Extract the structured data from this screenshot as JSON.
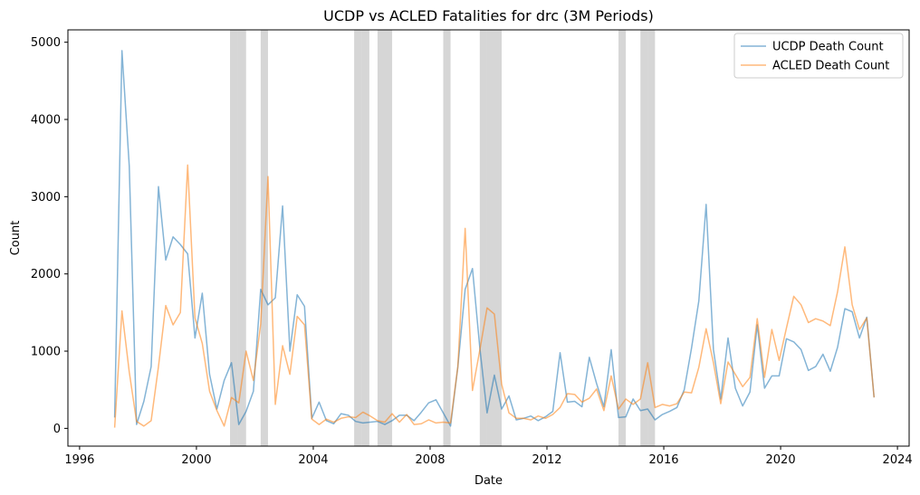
{
  "chart_data": {
    "type": "line",
    "title": "UCDP vs ACLED Fatalities for drc (3M Periods)",
    "xlabel": "Date",
    "ylabel": "Count",
    "xlim": [
      1995.6,
      2024.4
    ],
    "ylim": [
      -230,
      5160
    ],
    "xticks": [
      1996,
      2000,
      2004,
      2008,
      2012,
      2016,
      2020,
      2024
    ],
    "yticks": [
      0,
      1000,
      2000,
      3000,
      4000,
      5000
    ],
    "grid": false,
    "legend_position": "top-right",
    "shaded_periods": [
      [
        2001.15,
        2001.42
      ],
      [
        2001.42,
        2001.7
      ],
      [
        2002.2,
        2002.45
      ],
      [
        2005.4,
        2005.65
      ],
      [
        2005.65,
        2005.92
      ],
      [
        2006.2,
        2006.45
      ],
      [
        2006.45,
        2006.7
      ],
      [
        2008.45,
        2008.7
      ],
      [
        2009.7,
        2009.95
      ],
      [
        2009.95,
        2010.2
      ],
      [
        2010.2,
        2010.45
      ],
      [
        2014.45,
        2014.7
      ],
      [
        2015.2,
        2015.45
      ],
      [
        2015.45,
        2015.7
      ]
    ],
    "series": [
      {
        "name": "UCDP Death Count",
        "color": "#1f77b4",
        "x": [
          1997.2,
          1997.45,
          1997.7,
          1997.95,
          1998.2,
          1998.45,
          1998.7,
          1998.95,
          1999.2,
          1999.45,
          1999.7,
          1999.95,
          2000.2,
          2000.45,
          2000.7,
          2000.95,
          2001.2,
          2001.45,
          2001.7,
          2001.95,
          2002.2,
          2002.45,
          2002.7,
          2002.95,
          2003.2,
          2003.45,
          2003.7,
          2003.95,
          2004.2,
          2004.45,
          2004.7,
          2004.95,
          2005.2,
          2005.45,
          2005.7,
          2005.95,
          2006.2,
          2006.45,
          2006.7,
          2006.95,
          2007.2,
          2007.45,
          2007.7,
          2007.95,
          2008.2,
          2008.45,
          2008.7,
          2008.95,
          2009.2,
          2009.45,
          2009.7,
          2009.95,
          2010.2,
          2010.45,
          2010.7,
          2010.95,
          2011.2,
          2011.45,
          2011.7,
          2011.95,
          2012.2,
          2012.45,
          2012.7,
          2012.95,
          2013.2,
          2013.45,
          2013.7,
          2013.95,
          2014.2,
          2014.45,
          2014.7,
          2014.95,
          2015.2,
          2015.45,
          2015.7,
          2015.95,
          2016.2,
          2016.45,
          2016.7,
          2016.95,
          2017.2,
          2017.45,
          2017.7,
          2017.95,
          2018.2,
          2018.45,
          2018.7,
          2018.95,
          2019.2,
          2019.45,
          2019.7,
          2019.95,
          2020.2,
          2020.45,
          2020.7,
          2020.95,
          2021.2,
          2021.45,
          2021.7,
          2021.95,
          2022.2,
          2022.45,
          2022.7,
          2022.95,
          2023.2
        ],
        "y": [
          140,
          4890,
          3400,
          50,
          350,
          800,
          3130,
          2180,
          2480,
          2380,
          2260,
          1170,
          1750,
          700,
          250,
          620,
          850,
          50,
          220,
          480,
          1800,
          1600,
          1690,
          2880,
          1000,
          1730,
          1580,
          130,
          340,
          100,
          60,
          190,
          170,
          90,
          70,
          80,
          90,
          50,
          100,
          170,
          170,
          100,
          210,
          330,
          370,
          200,
          30,
          800,
          1800,
          2070,
          1050,
          200,
          690,
          250,
          420,
          110,
          130,
          160,
          100,
          150,
          220,
          980,
          340,
          350,
          280,
          920,
          580,
          280,
          1020,
          140,
          150,
          380,
          230,
          250,
          110,
          180,
          220,
          270,
          500,
          1040,
          1650,
          2900,
          1020,
          380,
          1170,
          520,
          290,
          470,
          1340,
          520,
          680,
          680,
          1160,
          1120,
          1020,
          750,
          800,
          960,
          740,
          1050,
          1550,
          1510,
          1170,
          1440,
          400
        ]
      },
      {
        "name": "ACLED Death Count",
        "color": "#ff7f0e",
        "x": [
          1997.2,
          1997.45,
          1997.7,
          1997.95,
          1998.2,
          1998.45,
          1998.7,
          1998.95,
          1999.2,
          1999.45,
          1999.7,
          1999.95,
          2000.2,
          2000.45,
          2000.7,
          2000.95,
          2001.2,
          2001.45,
          2001.7,
          2001.95,
          2002.2,
          2002.45,
          2002.7,
          2002.95,
          2003.2,
          2003.45,
          2003.7,
          2003.95,
          2004.2,
          2004.45,
          2004.7,
          2004.95,
          2005.2,
          2005.45,
          2005.7,
          2005.95,
          2006.2,
          2006.45,
          2006.7,
          2006.95,
          2007.2,
          2007.45,
          2007.7,
          2007.95,
          2008.2,
          2008.45,
          2008.7,
          2008.95,
          2009.2,
          2009.45,
          2009.7,
          2009.95,
          2010.2,
          2010.45,
          2010.7,
          2010.95,
          2011.2,
          2011.45,
          2011.7,
          2011.95,
          2012.2,
          2012.45,
          2012.7,
          2012.95,
          2013.2,
          2013.45,
          2013.7,
          2013.95,
          2014.2,
          2014.45,
          2014.7,
          2014.95,
          2015.2,
          2015.45,
          2015.7,
          2015.95,
          2016.2,
          2016.45,
          2016.7,
          2016.95,
          2017.2,
          2017.45,
          2017.7,
          2017.95,
          2018.2,
          2018.45,
          2018.7,
          2018.95,
          2019.2,
          2019.45,
          2019.7,
          2019.95,
          2020.2,
          2020.45,
          2020.7,
          2020.95,
          2021.2,
          2021.45,
          2021.7,
          2021.95,
          2022.2,
          2022.45,
          2022.7,
          2022.95,
          2023.2
        ],
        "y": [
          10,
          1520,
          730,
          90,
          30,
          100,
          800,
          1590,
          1340,
          1500,
          3410,
          1430,
          1100,
          480,
          230,
          30,
          400,
          330,
          1000,
          620,
          1350,
          3260,
          310,
          1070,
          700,
          1450,
          1340,
          120,
          50,
          120,
          80,
          130,
          150,
          140,
          210,
          160,
          100,
          80,
          190,
          80,
          180,
          50,
          60,
          110,
          70,
          80,
          70,
          800,
          2590,
          490,
          1010,
          1560,
          1480,
          570,
          200,
          130,
          130,
          110,
          160,
          130,
          180,
          270,
          450,
          440,
          340,
          390,
          510,
          230,
          680,
          250,
          380,
          310,
          380,
          850,
          270,
          310,
          290,
          320,
          470,
          460,
          790,
          1290,
          850,
          320,
          860,
          700,
          540,
          660,
          1420,
          660,
          1280,
          880,
          1300,
          1710,
          1600,
          1370,
          1420,
          1390,
          1330,
          1770,
          2350,
          1600,
          1280,
          1430,
          400
        ]
      }
    ]
  }
}
